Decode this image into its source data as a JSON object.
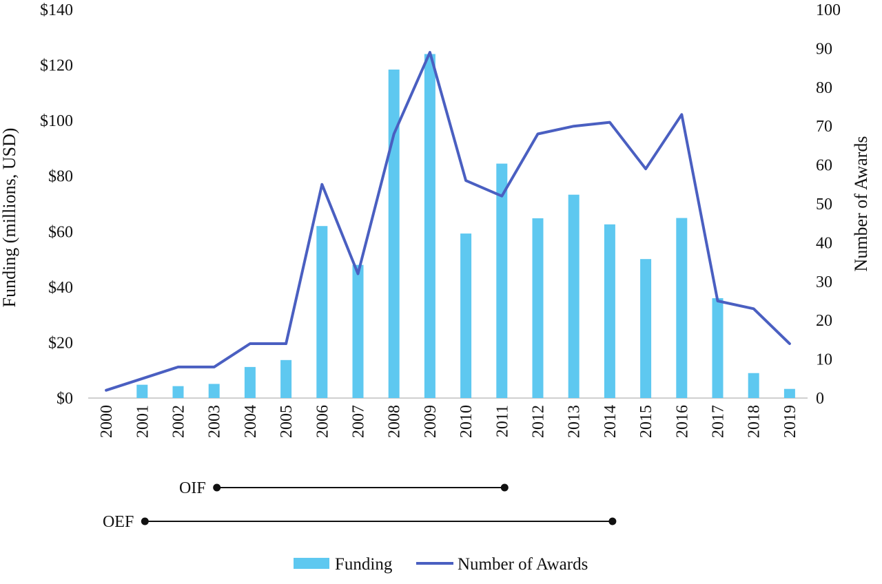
{
  "chart_data": {
    "type": "bar",
    "title": "",
    "categories": [
      "2000",
      "2001",
      "2002",
      "2003",
      "2004",
      "2005",
      "2006",
      "2007",
      "2008",
      "2009",
      "2010",
      "2011",
      "2012",
      "2013",
      "2014",
      "2015",
      "2016",
      "2017",
      "2018",
      "2019"
    ],
    "series": [
      {
        "name": "Funding",
        "type": "bar",
        "axis": "left",
        "color": "#5ec8f0",
        "values": [
          0,
          4.8,
          4.3,
          5.1,
          11.2,
          13.7,
          62.0,
          48.0,
          118.4,
          124.0,
          59.3,
          84.5,
          64.8,
          73.3,
          62.6,
          50.1,
          64.9,
          36.0,
          9.0,
          3.3
        ]
      },
      {
        "name": "Number of Awards",
        "type": "line",
        "axis": "right",
        "color": "#4a5fc1",
        "values": [
          2,
          5,
          8,
          8,
          14,
          14,
          55,
          32,
          68,
          89,
          56,
          52,
          68,
          70,
          71,
          59,
          73,
          25,
          23,
          14
        ]
      }
    ],
    "ylabel": "Funding (millions, USD)",
    "ylim": [
      0,
      140
    ],
    "yticks": [
      "$0",
      "$20",
      "$40",
      "$60",
      "$80",
      "$100",
      "$120",
      "$140"
    ],
    "y2label": "Number of Awards",
    "y2lim": [
      0,
      100
    ],
    "y2ticks": [
      "0",
      "10",
      "20",
      "30",
      "40",
      "50",
      "60",
      "70",
      "80",
      "90",
      "100"
    ],
    "grid": false,
    "legend_position": "bottom",
    "annotations": [
      {
        "label": "OIF",
        "start": "2003",
        "end": "2011"
      },
      {
        "label": "OEF",
        "start": "2001",
        "end": "2014"
      }
    ]
  }
}
